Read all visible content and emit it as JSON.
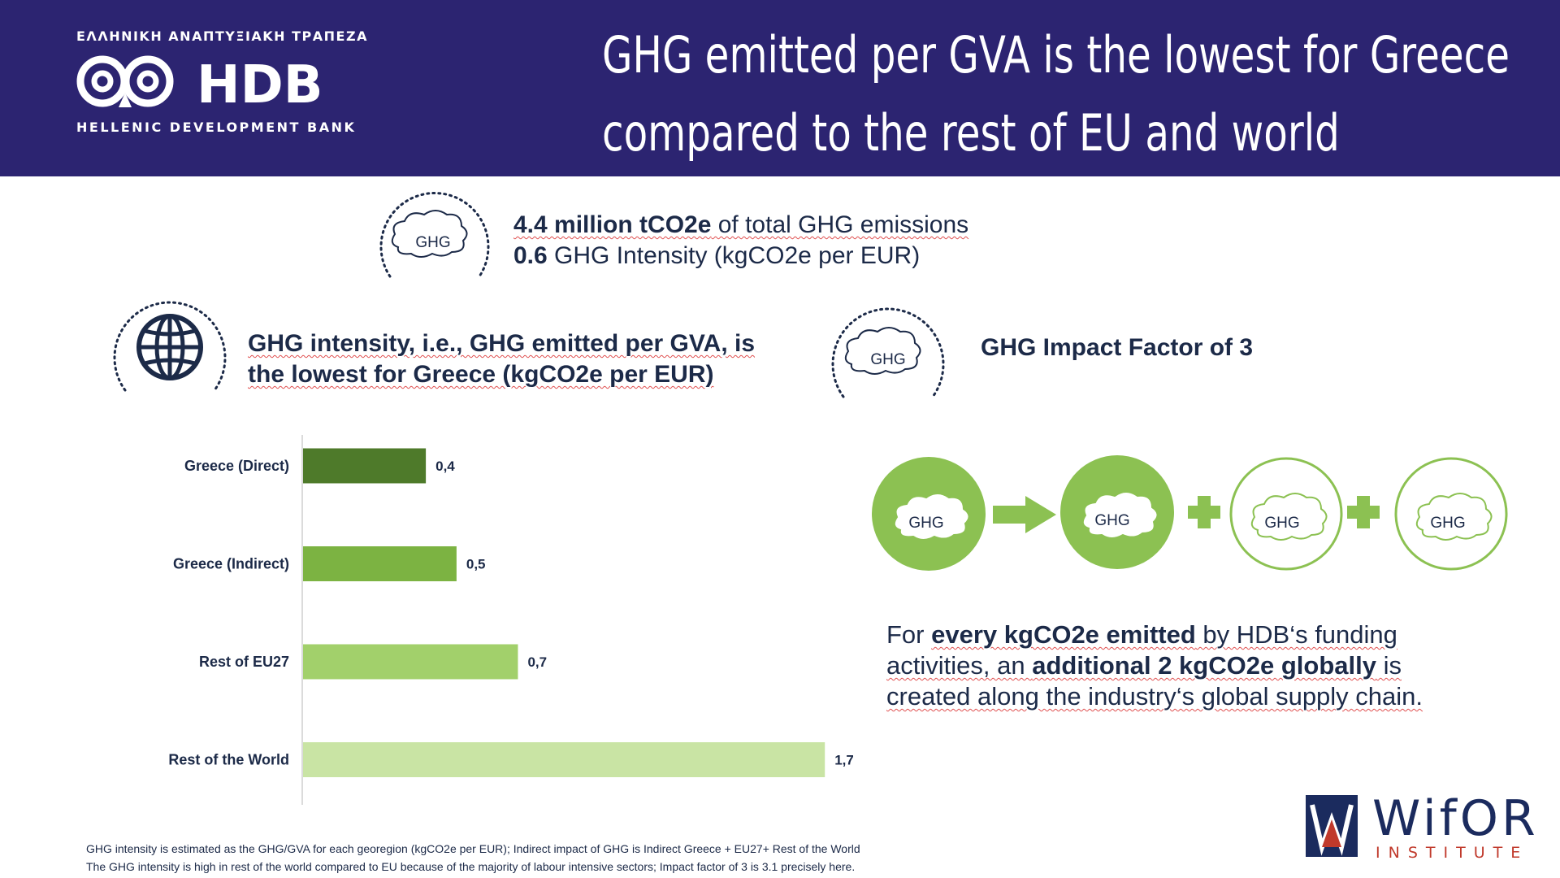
{
  "header": {
    "logo_greek": "ΕΛΛΗΝΙΚΗ ΑΝΑΠΤΥΞΙΑΚΗ ΤΡΑΠΕΖΑ",
    "logo_text": "HDB",
    "logo_sub": "HELLENIC DEVELOPMENT BANK",
    "title_line1": "GHG emitted per GVA is the lowest for Greece",
    "title_line2": "compared to the rest of EU and world",
    "bg_color": "#2c2471"
  },
  "stats": {
    "top_icon_label": "GHG",
    "line1_value": "4.4 million tCO2e",
    "line1_text": " of total GHG emissions",
    "line2_value": "0.6",
    "line2_text": " GHG Intensity (kgCO2e per EUR)",
    "globe_text_line1": "GHG intensity, i.e., GHG emitted per GVA, is",
    "globe_text_line2": "the lowest for Greece (kgCO2e per EUR)",
    "impact_icon_label": "GHG",
    "impact_text": "GHG Impact Factor of 3"
  },
  "chart_data": {
    "type": "bar",
    "orientation": "horizontal",
    "categories": [
      "Greece (Direct)",
      "Greece (Indirect)",
      "Rest of EU27",
      "Rest of the World"
    ],
    "values": [
      0.4,
      0.5,
      0.7,
      1.7
    ],
    "value_labels": [
      "0,4",
      "0,5",
      "0,7",
      "1,7"
    ],
    "colors": [
      "#4e7a2a",
      "#7cb342",
      "#a2d06b",
      "#c9e4a4"
    ],
    "xlim": [
      0,
      1.8
    ],
    "grid": false,
    "legend": "none"
  },
  "flow": {
    "labels": [
      "GHG",
      "GHG",
      "GHG",
      "GHG"
    ],
    "green": "#8cc152"
  },
  "description": {
    "p1": "For ",
    "p2": "every kgCO2e emitted",
    "p3": " by HDB‘s funding activities, an ",
    "p4": "additional 2 kgCO2e globally",
    "p5": " is created along the industry‘s global supply chain."
  },
  "footnote": {
    "line1": "GHG intensity is estimated as the GHG/GVA for each georegion (kgCO2e per EUR); Indirect impact of GHG is Indirect Greece + EU27+ Rest of the World",
    "line2": "The GHG intensity is high in rest of the world compared to EU because of the majority of labour intensive sectors; Impact factor of 3 is 3.1 precisely here."
  },
  "wifor": {
    "name": "WifOR",
    "sub": "INSTITUTE"
  }
}
